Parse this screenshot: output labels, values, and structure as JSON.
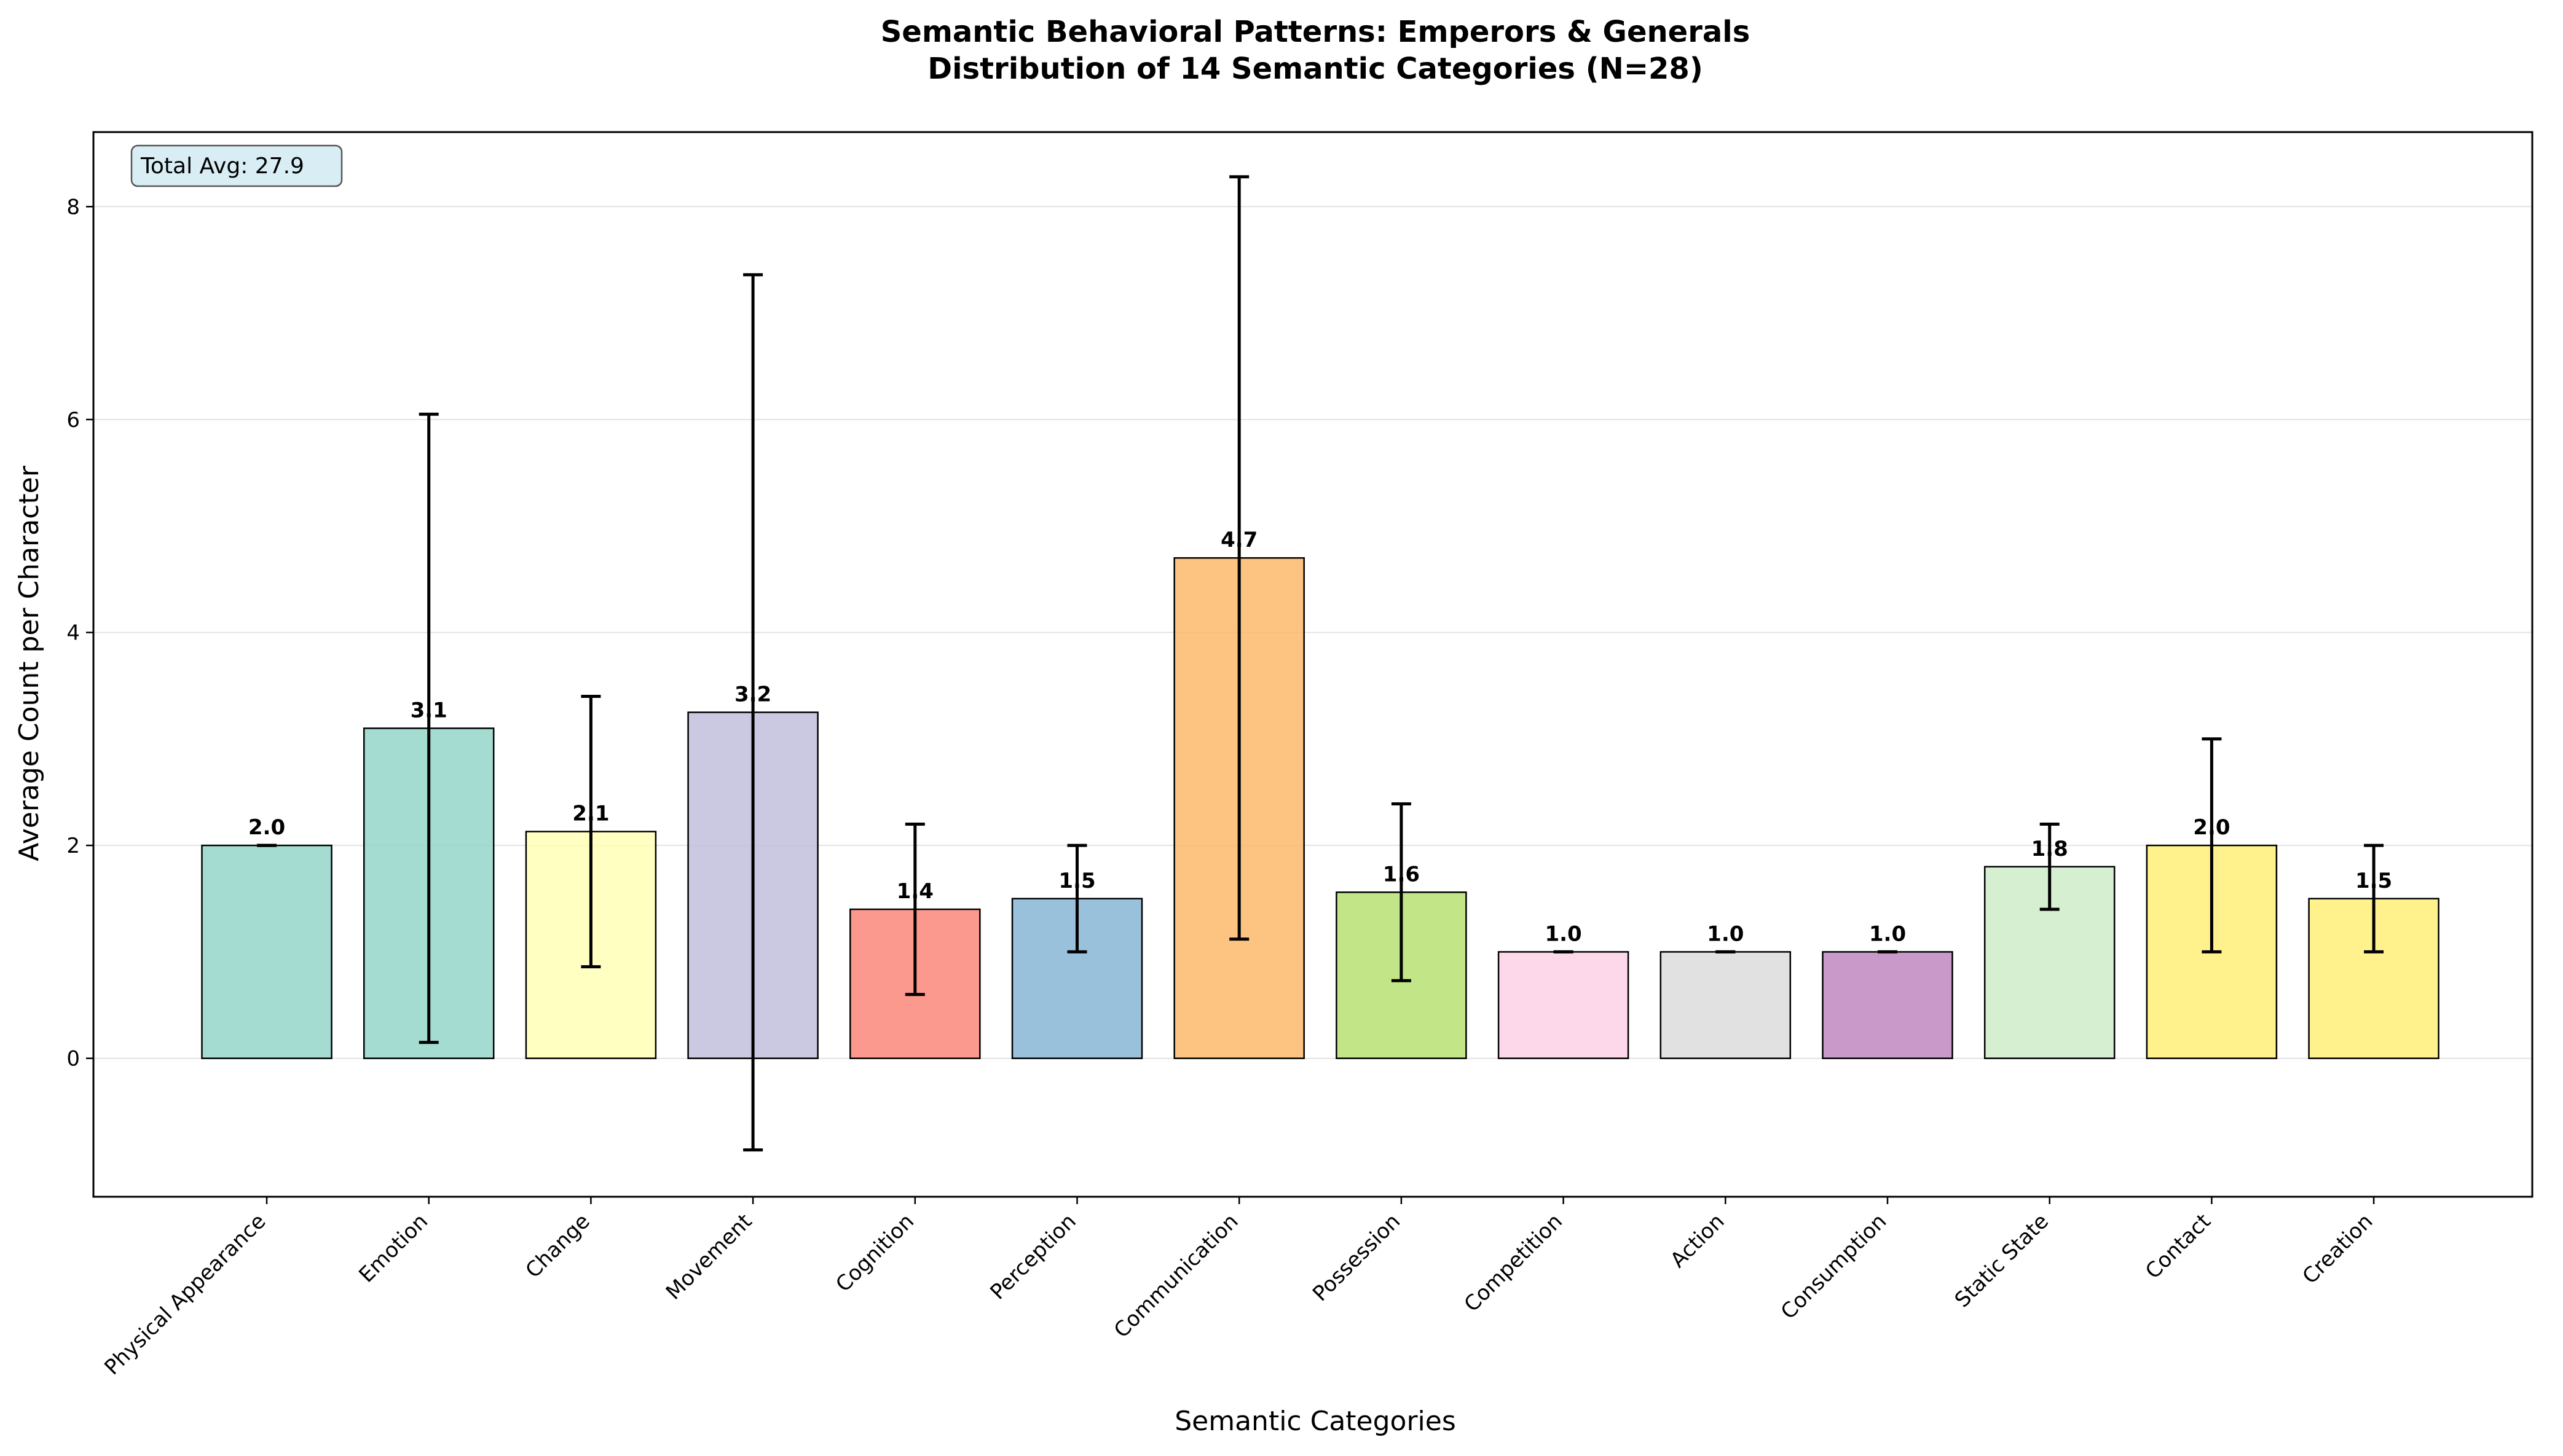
{
  "chart_data": {
    "type": "bar",
    "title": "Semantic Behavioral Patterns: Emperors & Generals",
    "subtitle": "Distribution of 14 Semantic Categories (N=28)",
    "xlabel": "Semantic Categories",
    "ylabel": "Average Count per Character",
    "ylim": [
      -1.3,
      8.7
    ],
    "yticks": [
      0,
      2,
      4,
      6,
      8
    ],
    "grid": "y",
    "categories": [
      "Physical Appearance",
      "Emotion",
      "Change",
      "Movement",
      "Cognition",
      "Perception",
      "Communication",
      "Possession",
      "Competition",
      "Action",
      "Consumption",
      "Static State",
      "Contact",
      "Creation"
    ],
    "values": [
      2.0,
      3.1,
      2.13,
      3.25,
      1.4,
      1.5,
      4.7,
      1.56,
      1.0,
      1.0,
      1.0,
      1.8,
      2.0,
      1.5
    ],
    "value_labels": [
      "2.0",
      "3.1",
      "2.1",
      "3.2",
      "1.4",
      "1.5",
      "4.7",
      "1.6",
      "1.0",
      "1.0",
      "1.0",
      "1.8",
      "2.0",
      "1.5"
    ],
    "errors": [
      0.0,
      2.95,
      1.27,
      4.11,
      0.8,
      0.5,
      3.58,
      0.83,
      0.0,
      0.0,
      0.0,
      0.4,
      1.0,
      0.5
    ],
    "colors": [
      "#8dd3c7",
      "#8dd3c7",
      "#ffffb3",
      "#bebada",
      "#fb8072",
      "#80b1d3",
      "#fdb462",
      "#b3de69",
      "#fccde5",
      "#d9d9d9",
      "#bc80bd",
      "#ccebc5",
      "#ffed6f",
      "#ffed6f"
    ],
    "annotation": "Total Avg: 27.9"
  }
}
